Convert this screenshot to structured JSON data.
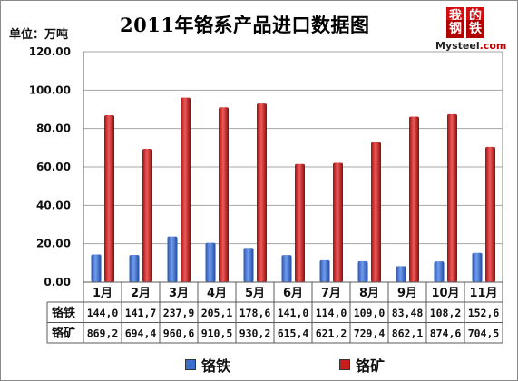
{
  "header": {
    "unit_label": "单位：万吨",
    "title": "2011年铬系产品进口数据图",
    "logo": {
      "glyphs": [
        "我",
        "的",
        "钢",
        "铁"
      ],
      "word_main": "Mysteel",
      "word_suffix": ".com"
    }
  },
  "colors": {
    "ferrochrome": "#3a6fd0",
    "chrome_ore": "#c81e1e"
  },
  "chart_data": {
    "type": "bar",
    "title": "2011年铬系产品进口数据图",
    "ylabel": "单位：万吨",
    "xlabel": "",
    "ylim": [
      0,
      120
    ],
    "yticks": [
      "0.00",
      "20.00",
      "40.00",
      "60.00",
      "80.00",
      "100.00",
      "120.00"
    ],
    "grid": true,
    "legend_position": "bottom",
    "categories": [
      "1月",
      "2月",
      "3月",
      "4月",
      "5月",
      "6月",
      "7月",
      "8月",
      "9月",
      "10月",
      "11月"
    ],
    "series": [
      {
        "name": "铬铁",
        "values": [
          14.4,
          14.17,
          23.79,
          20.51,
          17.86,
          14.1,
          11.4,
          10.9,
          8.348,
          10.82,
          15.26
        ]
      },
      {
        "name": "铬矿",
        "values": [
          86.92,
          69.44,
          96.06,
          91.05,
          93.02,
          61.54,
          62.12,
          72.94,
          86.21,
          87.46,
          70.45
        ]
      }
    ],
    "table": {
      "row_labels": [
        "铬铁",
        "铬矿"
      ],
      "rows": [
        [
          "144,0",
          "141,7",
          "237,9",
          "205,1",
          "178,6",
          "141,0",
          "114,0",
          "109,0",
          "83,48",
          "108,2",
          "152,6"
        ],
        [
          "869,2",
          "694,4",
          "960,6",
          "910,5",
          "930,2",
          "615,4",
          "621,2",
          "729,4",
          "862,1",
          "874,6",
          "704,5"
        ]
      ]
    }
  }
}
